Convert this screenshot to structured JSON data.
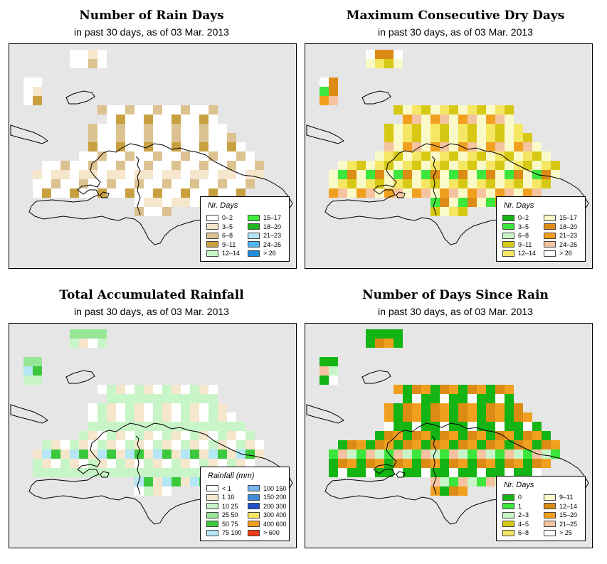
{
  "panels": [
    {
      "title": "Number of Rain Days",
      "subtitle": "in past 30 days, as of  03 Mar. 2013",
      "legend_title": "Nr. Days",
      "legend": [
        {
          "label": "0–2",
          "color": "#ffffff"
        },
        {
          "label": "3–5",
          "color": "#f5e6cc"
        },
        {
          "label": "6–8",
          "color": "#dcc290"
        },
        {
          "label": "9–11",
          "color": "#c8a040"
        },
        {
          "label": "12–14",
          "color": "#c8f5c8"
        },
        {
          "label": "15–17",
          "color": "#3cf03c"
        },
        {
          "label": "18–20",
          "color": "#1eb41e"
        },
        {
          "label": "21–23",
          "color": "#b4e6f5"
        },
        {
          "label": "24–26",
          "color": "#50b4f0"
        },
        {
          "label": "> 26",
          "color": "#1e8cdc"
        }
      ]
    },
    {
      "title": "Maximum Consecutive Dry Days",
      "subtitle": "in past 30 days, as of  03 Mar. 2013",
      "legend_title": "Nr. Days",
      "legend": [
        {
          "label": "0–2",
          "color": "#14b414"
        },
        {
          "label": "3–5",
          "color": "#3ce63c"
        },
        {
          "label": "6–8",
          "color": "#c8f5c8"
        },
        {
          "label": "9–11",
          "color": "#d7c814"
        },
        {
          "label": "12–14",
          "color": "#f5e664"
        },
        {
          "label": "15–17",
          "color": "#fafac8"
        },
        {
          "label": "18–20",
          "color": "#dc8c14"
        },
        {
          "label": "21–23",
          "color": "#f0a01e"
        },
        {
          "label": "24–26",
          "color": "#f5c3a0"
        },
        {
          "label": "> 26",
          "color": "#ffffff"
        }
      ]
    },
    {
      "title": "Total Accumulated Rainfall",
      "subtitle": "in past 30 days, as of  03 Mar. 2013",
      "legend_title": "Rainfall (mm)",
      "legend": [
        {
          "label": "< 1",
          "color": "#ffffff"
        },
        {
          "label": "1   10",
          "color": "#f5e6cc"
        },
        {
          "label": "10   25",
          "color": "#c8f5c8"
        },
        {
          "label": "25   50",
          "color": "#96e696"
        },
        {
          "label": "50   75",
          "color": "#3cc83c"
        },
        {
          "label": "75  100",
          "color": "#b4e6f5"
        },
        {
          "label": "100  150",
          "color": "#78b4f0"
        },
        {
          "label": "150  200",
          "color": "#3c8cdc"
        },
        {
          "label": "200  300",
          "color": "#1e50c8"
        },
        {
          "label": "300  400",
          "color": "#f5e664"
        },
        {
          "label": "400  600",
          "color": "#f0a01e"
        },
        {
          "label": "> 600",
          "color": "#f03c14"
        }
      ]
    },
    {
      "title": "Number of Days Since Rain",
      "subtitle": "in past 30 days, as of  03 Mar. 2013",
      "legend_title": "Nr. Days",
      "legend": [
        {
          "label": "0",
          "color": "#14b414"
        },
        {
          "label": "1",
          "color": "#3ce63c"
        },
        {
          "label": "2–3",
          "color": "#c8f5c8"
        },
        {
          "label": "4–5",
          "color": "#d7c814"
        },
        {
          "label": "6–8",
          "color": "#f5e664"
        },
        {
          "label": "9–11",
          "color": "#fafac8"
        },
        {
          "label": "12–14",
          "color": "#dc8c14"
        },
        {
          "label": "15–20",
          "color": "#f0a01e"
        },
        {
          "label": "21–25",
          "color": "#f5c3a0"
        },
        {
          "label": "> 25",
          "color": "#ffffff"
        }
      ]
    }
  ]
}
